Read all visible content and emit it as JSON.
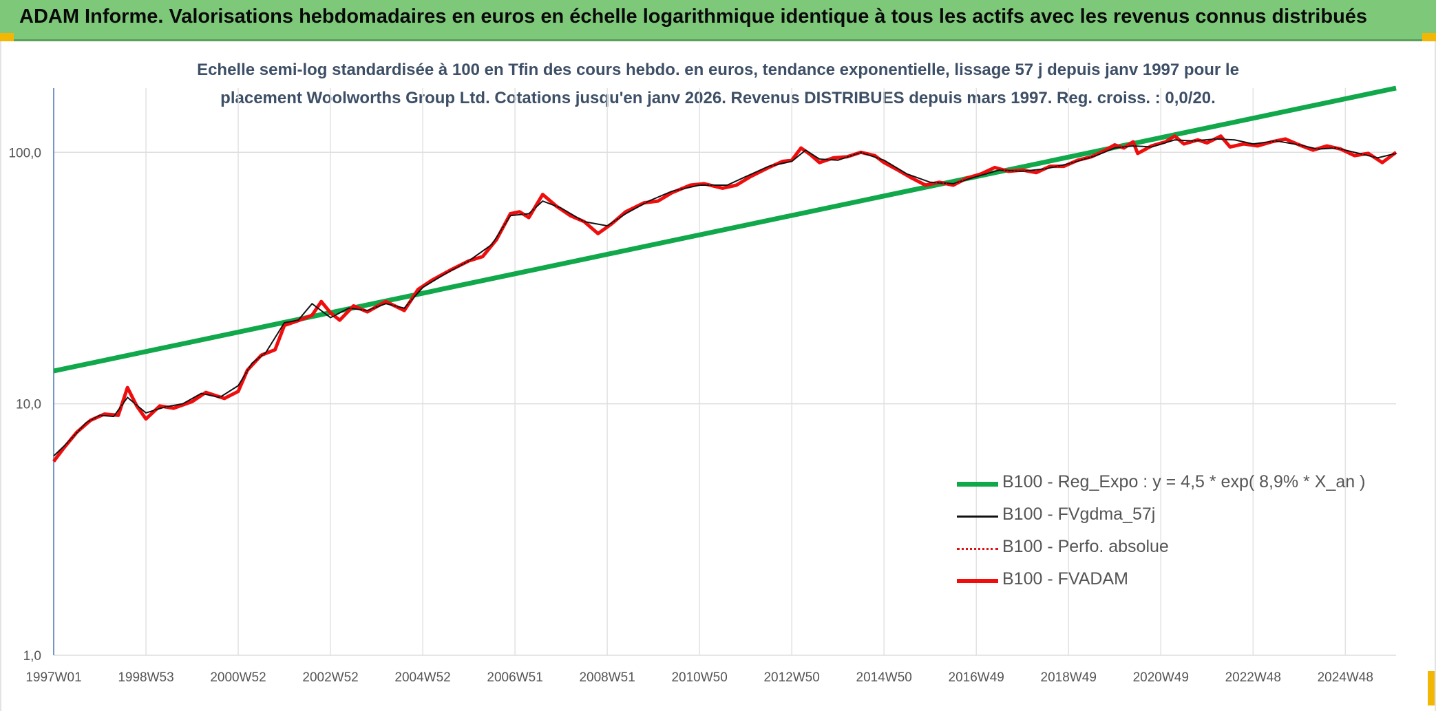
{
  "banner": {
    "title": "ADAM Informe. Valorisations hebdomadaires en euros en échelle logarithmique identique à tous les actifs avec les revenus connus distribués"
  },
  "chart_data": {
    "type": "line",
    "title_line1": "Echelle semi-log standardisée à 100 en Tfin des cours hebdo. en euros, tendance exponentielle, lissage 57 j depuis janv 1997 pour le",
    "title_line2": "placement Woolworths Group Ltd. Cotations jusqu'en janv 2026. Revenus DISTRIBUES depuis mars 1997. Reg. croiss. : 0,0/20.",
    "y_scale": "log",
    "ylim": [
      1,
      180
    ],
    "y_ticks": [
      {
        "value": 1,
        "label": "1,0"
      },
      {
        "value": 10,
        "label": "10,0"
      },
      {
        "value": 100,
        "label": "100,0"
      }
    ],
    "x_ticks": [
      {
        "t": 1997.0,
        "label": "1997W01"
      },
      {
        "t": 1999.0,
        "label": "1998W53"
      },
      {
        "t": 2001.0,
        "label": "2000W52"
      },
      {
        "t": 2003.0,
        "label": "2002W52"
      },
      {
        "t": 2005.0,
        "label": "2004W52"
      },
      {
        "t": 2007.0,
        "label": "2006W51"
      },
      {
        "t": 2009.0,
        "label": "2008W51"
      },
      {
        "t": 2011.0,
        "label": "2010W50"
      },
      {
        "t": 2013.0,
        "label": "2012W50"
      },
      {
        "t": 2015.0,
        "label": "2014W50"
      },
      {
        "t": 2017.0,
        "label": "2016W49"
      },
      {
        "t": 2019.0,
        "label": "2018W49"
      },
      {
        "t": 2021.0,
        "label": "2020W49"
      },
      {
        "t": 2023.0,
        "label": "2022W48"
      },
      {
        "t": 2025.0,
        "label": "2024W48"
      }
    ],
    "xlim": [
      1997.0,
      2026.1
    ],
    "grid": true,
    "legend_position": "bottom-right",
    "series": [
      {
        "name": "B100 - Reg_Expo : y = 4,5 * exp( 8,9% *  X_an )",
        "style": "green-thick",
        "color": "#10a84a",
        "points": [
          [
            1997.0,
            13.5
          ],
          [
            2026.1,
            180
          ]
        ]
      },
      {
        "name": "B100 - FVgdma_57j",
        "style": "black-thin",
        "color": "#111111",
        "points": [
          [
            1997.0,
            6.2
          ],
          [
            1997.3,
            7.0
          ],
          [
            1997.7,
            8.4
          ],
          [
            1998.0,
            9.0
          ],
          [
            1998.3,
            8.9
          ],
          [
            1998.6,
            10.6
          ],
          [
            1999.0,
            9.2
          ],
          [
            1999.4,
            9.7
          ],
          [
            1999.8,
            10.0
          ],
          [
            2000.2,
            11.0
          ],
          [
            2000.6,
            10.6
          ],
          [
            2001.0,
            11.8
          ],
          [
            2001.3,
            14.5
          ],
          [
            2001.6,
            16.0
          ],
          [
            2002.0,
            21.0
          ],
          [
            2002.3,
            21.5
          ],
          [
            2002.6,
            25.0
          ],
          [
            2003.0,
            22.0
          ],
          [
            2003.4,
            24.0
          ],
          [
            2003.8,
            23.5
          ],
          [
            2004.2,
            25.0
          ],
          [
            2004.6,
            24.0
          ],
          [
            2005.0,
            29.0
          ],
          [
            2005.5,
            33.0
          ],
          [
            2006.0,
            37.0
          ],
          [
            2006.5,
            43.0
          ],
          [
            2006.9,
            56.0
          ],
          [
            2007.3,
            57.0
          ],
          [
            2007.6,
            64.0
          ],
          [
            2008.0,
            60.0
          ],
          [
            2008.5,
            53.0
          ],
          [
            2009.0,
            51.0
          ],
          [
            2009.4,
            57.0
          ],
          [
            2009.9,
            64.0
          ],
          [
            2010.4,
            70.0
          ],
          [
            2011.0,
            74.0
          ],
          [
            2011.6,
            74.0
          ],
          [
            2012.0,
            80.0
          ],
          [
            2012.5,
            88.0
          ],
          [
            2013.0,
            92.0
          ],
          [
            2013.3,
            102.0
          ],
          [
            2013.6,
            94.0
          ],
          [
            2014.0,
            93.0
          ],
          [
            2014.5,
            100.0
          ],
          [
            2015.0,
            93.0
          ],
          [
            2015.5,
            82.0
          ],
          [
            2016.0,
            76.0
          ],
          [
            2016.5,
            75.0
          ],
          [
            2017.0,
            80.0
          ],
          [
            2017.5,
            85.0
          ],
          [
            2018.0,
            84.0
          ],
          [
            2018.5,
            86.0
          ],
          [
            2019.0,
            90.0
          ],
          [
            2019.6,
            97.0
          ],
          [
            2020.0,
            104.0
          ],
          [
            2020.4,
            106.0
          ],
          [
            2020.8,
            105.0
          ],
          [
            2021.3,
            112.0
          ],
          [
            2021.7,
            111.0
          ],
          [
            2022.2,
            113.0
          ],
          [
            2022.6,
            112.0
          ],
          [
            2023.0,
            108.0
          ],
          [
            2023.5,
            111.0
          ],
          [
            2024.0,
            107.0
          ],
          [
            2024.4,
            103.0
          ],
          [
            2024.8,
            104.0
          ],
          [
            2025.2,
            100.0
          ],
          [
            2025.7,
            95.0
          ],
          [
            2026.1,
            99.0
          ]
        ]
      },
      {
        "name": "B100 - Perfo. absolue",
        "style": "red-dotted",
        "color": "#e01010",
        "points": [
          [
            1997.0,
            5.9
          ],
          [
            1997.2,
            6.6
          ],
          [
            1997.5,
            7.7
          ],
          [
            1997.8,
            8.6
          ],
          [
            1998.1,
            9.1
          ],
          [
            1998.4,
            9.0
          ],
          [
            1998.6,
            11.6
          ],
          [
            1998.8,
            9.8
          ],
          [
            1999.0,
            8.7
          ],
          [
            1999.3,
            9.8
          ],
          [
            1999.6,
            9.6
          ],
          [
            2000.0,
            10.2
          ],
          [
            2000.3,
            11.1
          ],
          [
            2000.7,
            10.5
          ],
          [
            2001.0,
            11.2
          ],
          [
            2001.2,
            13.6
          ],
          [
            2001.5,
            15.6
          ],
          [
            2001.8,
            16.4
          ],
          [
            2002.0,
            20.5
          ],
          [
            2002.3,
            21.4
          ],
          [
            2002.6,
            22.5
          ],
          [
            2002.8,
            25.5
          ],
          [
            2003.0,
            23.0
          ],
          [
            2003.2,
            21.5
          ],
          [
            2003.5,
            24.5
          ],
          [
            2003.8,
            23.2
          ],
          [
            2004.2,
            25.5
          ],
          [
            2004.6,
            23.5
          ],
          [
            2004.9,
            28.5
          ],
          [
            2005.2,
            31.0
          ],
          [
            2005.6,
            34.0
          ],
          [
            2006.0,
            37.0
          ],
          [
            2006.3,
            38.5
          ],
          [
            2006.6,
            45.0
          ],
          [
            2006.9,
            57.0
          ],
          [
            2007.1,
            58.0
          ],
          [
            2007.3,
            55.0
          ],
          [
            2007.6,
            68.0
          ],
          [
            2007.9,
            61.0
          ],
          [
            2008.2,
            56.0
          ],
          [
            2008.5,
            53.0
          ],
          [
            2008.8,
            47.5
          ],
          [
            2009.1,
            52.0
          ],
          [
            2009.4,
            58.0
          ],
          [
            2009.8,
            63.0
          ],
          [
            2010.1,
            64.0
          ],
          [
            2010.4,
            69.0
          ],
          [
            2010.8,
            74.0
          ],
          [
            2011.1,
            75.0
          ],
          [
            2011.5,
            72.0
          ],
          [
            2011.8,
            74.0
          ],
          [
            2012.1,
            80.0
          ],
          [
            2012.5,
            87.0
          ],
          [
            2012.8,
            92.0
          ],
          [
            2013.0,
            93.0
          ],
          [
            2013.2,
            104.0
          ],
          [
            2013.4,
            98.0
          ],
          [
            2013.6,
            91.0
          ],
          [
            2013.9,
            95.0
          ],
          [
            2014.2,
            96.0
          ],
          [
            2014.5,
            100.0
          ],
          [
            2014.8,
            97.0
          ],
          [
            2015.0,
            91.0
          ],
          [
            2015.3,
            85.0
          ],
          [
            2015.6,
            79.0
          ],
          [
            2015.9,
            74.0
          ],
          [
            2016.2,
            76.0
          ],
          [
            2016.5,
            74.0
          ],
          [
            2016.8,
            79.0
          ],
          [
            2017.1,
            82.0
          ],
          [
            2017.4,
            87.0
          ],
          [
            2017.7,
            84.0
          ],
          [
            2018.0,
            85.0
          ],
          [
            2018.3,
            83.0
          ],
          [
            2018.6,
            88.0
          ],
          [
            2018.9,
            88.0
          ],
          [
            2019.2,
            93.0
          ],
          [
            2019.5,
            96.0
          ],
          [
            2019.8,
            102.0
          ],
          [
            2020.0,
            107.0
          ],
          [
            2020.2,
            104.0
          ],
          [
            2020.4,
            110.0
          ],
          [
            2020.5,
            99.0
          ],
          [
            2020.8,
            106.0
          ],
          [
            2021.1,
            110.0
          ],
          [
            2021.3,
            116.0
          ],
          [
            2021.5,
            108.0
          ],
          [
            2021.8,
            112.0
          ],
          [
            2022.0,
            109.0
          ],
          [
            2022.3,
            116.0
          ],
          [
            2022.5,
            105.0
          ],
          [
            2022.8,
            108.0
          ],
          [
            2023.1,
            106.0
          ],
          [
            2023.4,
            110.0
          ],
          [
            2023.7,
            113.0
          ],
          [
            2024.0,
            107.0
          ],
          [
            2024.3,
            102.0
          ],
          [
            2024.6,
            106.0
          ],
          [
            2024.9,
            103.0
          ],
          [
            2025.2,
            97.0
          ],
          [
            2025.5,
            99.0
          ],
          [
            2025.8,
            91.0
          ],
          [
            2026.1,
            100.0
          ]
        ]
      },
      {
        "name": "B100 - FVADAM",
        "style": "red-thick",
        "color": "#f20d0d",
        "points": "same-as:B100 - Perfo. absolue"
      }
    ]
  }
}
